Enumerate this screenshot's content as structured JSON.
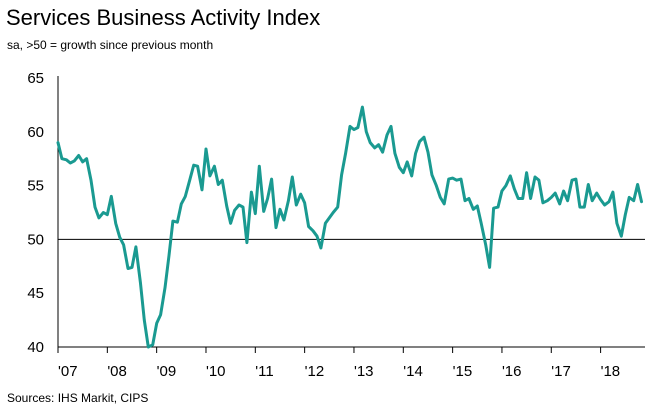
{
  "title": "Services Business Activity Index",
  "subtitle": "sa, >50 = growth since previous month",
  "source": "Sources: IHS Markit, CIPS",
  "chart_data": {
    "type": "line",
    "title": "Services Business Activity Index",
    "subtitle": "sa, >50 = growth since previous month",
    "xlabel": "",
    "ylabel": "",
    "ylim": [
      40,
      65
    ],
    "yticks": [
      40,
      45,
      50,
      55,
      60,
      65
    ],
    "xlim": [
      2007.0,
      2018.9
    ],
    "xtick_labels": [
      "'07",
      "'08",
      "'09",
      "'10",
      "'11",
      "'12",
      "'13",
      "'14",
      "'15",
      "'16",
      "'17",
      "'18"
    ],
    "grid": false,
    "line_color": "#1a9a91",
    "series": [
      {
        "name": "",
        "x": [
          2007.0,
          2007.08,
          2007.17,
          2007.25,
          2007.33,
          2007.42,
          2007.5,
          2007.58,
          2007.67,
          2007.75,
          2007.83,
          2007.92,
          2008.0,
          2008.08,
          2008.17,
          2008.25,
          2008.33,
          2008.42,
          2008.5,
          2008.58,
          2008.67,
          2008.75,
          2008.83,
          2008.92,
          2009.0,
          2009.08,
          2009.17,
          2009.25,
          2009.33,
          2009.42,
          2009.5,
          2009.58,
          2009.67,
          2009.75,
          2009.83,
          2009.92,
          2010.0,
          2010.08,
          2010.17,
          2010.25,
          2010.33,
          2010.42,
          2010.5,
          2010.58,
          2010.67,
          2010.75,
          2010.83,
          2010.92,
          2011.0,
          2011.08,
          2011.17,
          2011.25,
          2011.33,
          2011.42,
          2011.5,
          2011.58,
          2011.67,
          2011.75,
          2011.83,
          2011.92,
          2012.0,
          2012.08,
          2012.17,
          2012.25,
          2012.33,
          2012.42,
          2012.5,
          2012.58,
          2012.67,
          2012.75,
          2012.83,
          2012.92,
          2013.0,
          2013.08,
          2013.17,
          2013.25,
          2013.33,
          2013.42,
          2013.5,
          2013.58,
          2013.67,
          2013.75,
          2013.83,
          2013.92,
          2014.0,
          2014.08,
          2014.17,
          2014.25,
          2014.33,
          2014.42,
          2014.5,
          2014.58,
          2014.67,
          2014.75,
          2014.83,
          2014.92,
          2015.0,
          2015.08,
          2015.17,
          2015.25,
          2015.33,
          2015.42,
          2015.5,
          2015.58,
          2015.67,
          2015.75,
          2015.83,
          2015.92,
          2016.0,
          2016.08,
          2016.17,
          2016.25,
          2016.33,
          2016.42,
          2016.5,
          2016.58,
          2016.67,
          2016.75,
          2016.83,
          2016.92,
          2017.0,
          2017.08,
          2017.17,
          2017.25,
          2017.33,
          2017.42,
          2017.5,
          2017.58,
          2017.67,
          2017.75,
          2017.83,
          2017.92,
          2018.0,
          2018.08,
          2018.17,
          2018.25,
          2018.33,
          2018.42,
          2018.5,
          2018.58,
          2018.67,
          2018.75,
          2018.83
        ],
        "y": [
          59.0,
          57.5,
          57.4,
          57.1,
          57.3,
          57.8,
          57.2,
          57.5,
          55.5,
          53.0,
          52.0,
          52.5,
          52.3,
          54.0,
          51.5,
          50.2,
          49.5,
          47.3,
          47.4,
          49.3,
          46.0,
          42.5,
          40.0,
          40.2,
          42.2,
          43.0,
          45.5,
          48.5,
          51.7,
          51.6,
          53.3,
          54.0,
          55.5,
          56.9,
          56.8,
          54.6,
          58.4,
          55.9,
          56.8,
          55.1,
          55.5,
          53.1,
          51.5,
          52.7,
          53.2,
          53.0,
          49.7,
          54.4,
          52.4,
          56.8,
          52.6,
          53.8,
          55.6,
          51.1,
          52.8,
          51.8,
          53.6,
          55.8,
          53.2,
          54.2,
          53.4,
          51.2,
          50.8,
          50.3,
          49.2,
          51.5,
          52.0,
          52.5,
          53.0,
          56.0,
          58.0,
          60.5,
          60.2,
          60.4,
          62.3,
          60.0,
          59.0,
          58.5,
          58.8,
          58.1,
          59.7,
          60.5,
          58.0,
          56.7,
          56.2,
          57.2,
          55.9,
          58.0,
          59.1,
          59.5,
          58.1,
          56.0,
          55.0,
          53.9,
          53.3,
          55.6,
          55.7,
          55.5,
          55.6,
          53.6,
          53.8,
          52.8,
          53.1,
          51.5,
          49.5,
          47.4,
          52.9,
          53.0,
          54.5,
          55.0,
          55.9,
          54.7,
          53.8,
          53.8,
          56.2,
          53.8,
          55.8,
          55.5,
          53.4,
          53.6,
          53.9,
          54.3,
          53.3,
          54.5,
          53.6,
          55.5,
          55.6,
          53.0,
          53.0,
          55.1,
          53.6,
          54.3,
          53.7,
          53.2,
          53.5,
          54.4,
          51.5,
          50.3,
          52.3,
          53.9,
          53.6,
          55.1,
          53.5
        ]
      }
    ]
  }
}
